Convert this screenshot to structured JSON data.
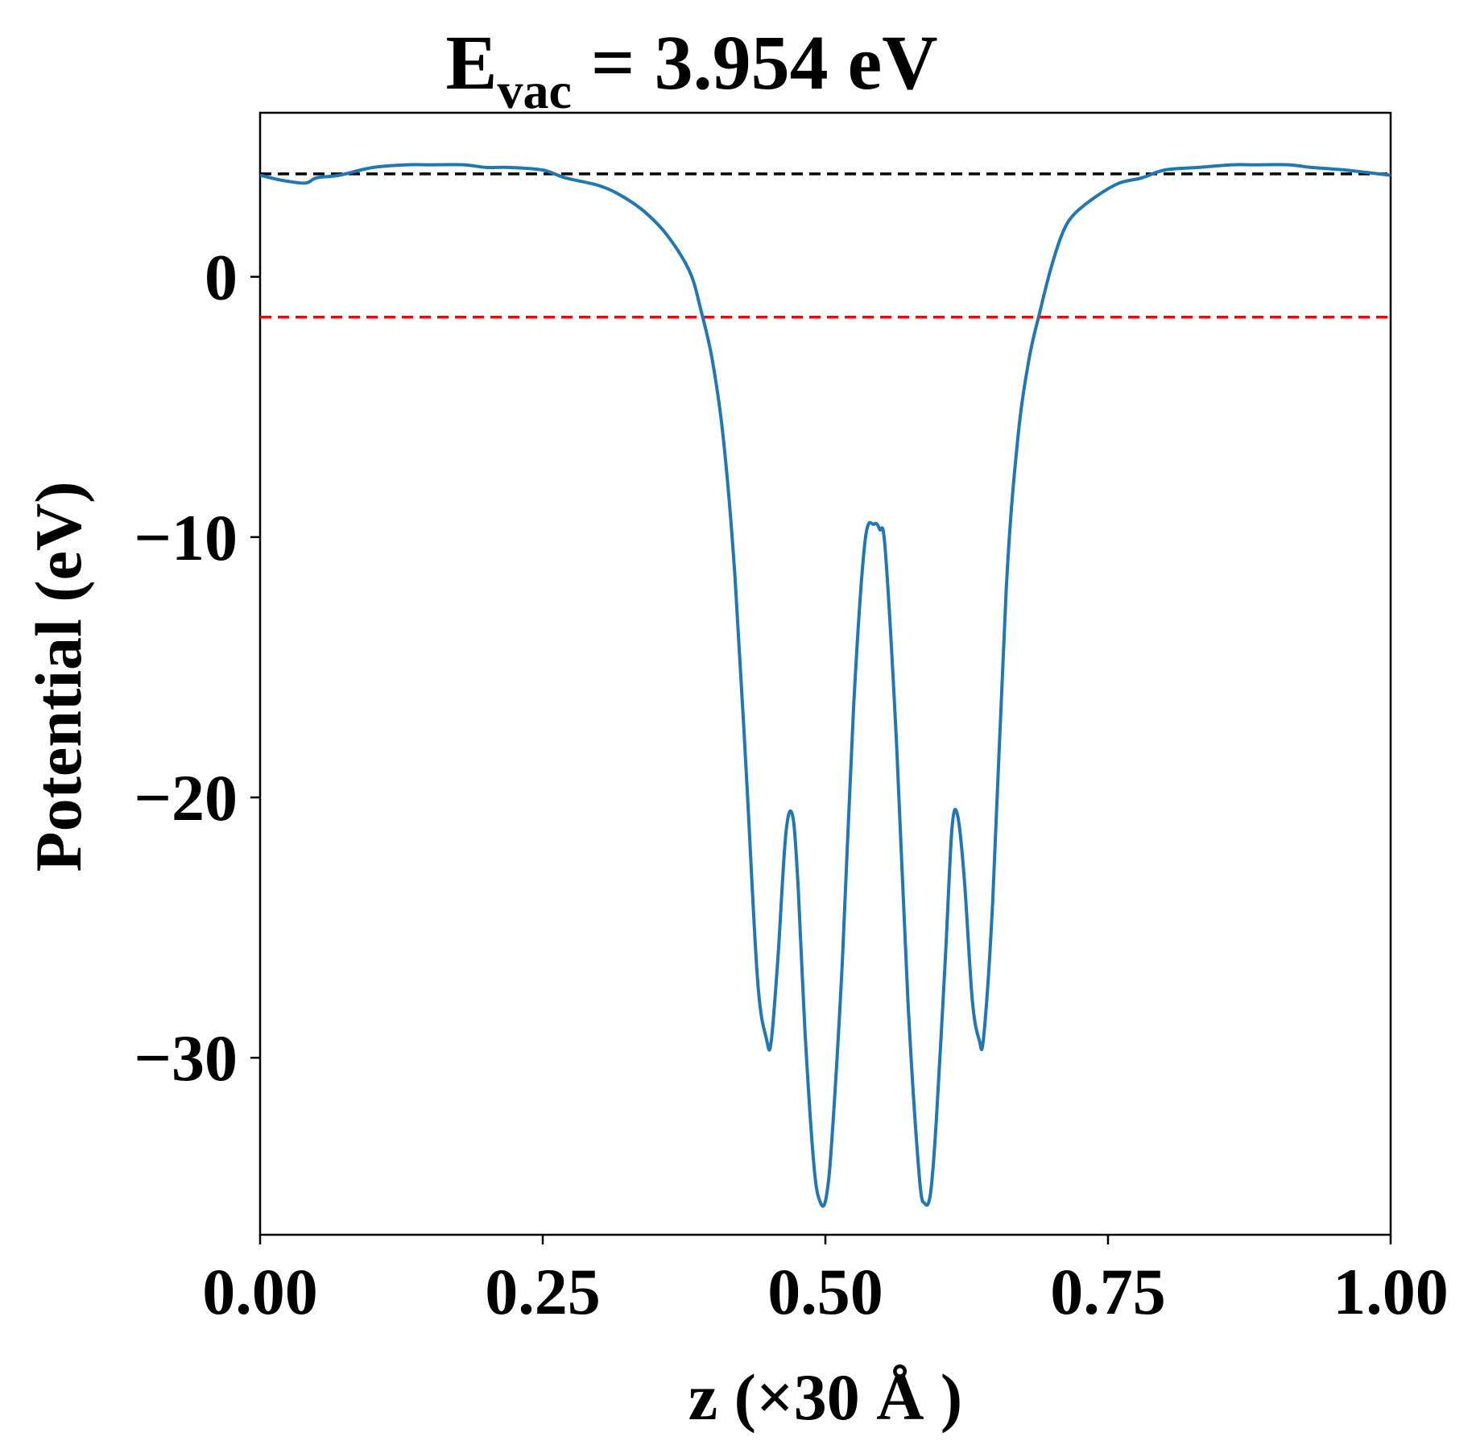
{
  "chart_data": {
    "type": "line",
    "title_main": "E",
    "title_sub": "vac",
    "title_rest": " = 3.954 eV",
    "xlabel": "z (×30 Å )",
    "ylabel": "Potential (eV)",
    "xlim": [
      0.0,
      1.0
    ],
    "ylim": [
      -36.8,
      6.3
    ],
    "xticks": [
      0.0,
      0.25,
      0.5,
      0.75,
      1.0
    ],
    "xtick_labels": [
      "0.00",
      "0.25",
      "0.50",
      "0.75",
      "1.00"
    ],
    "yticks": [
      0,
      -10,
      -20,
      -30
    ],
    "ytick_labels": [
      "0",
      "−10",
      "−20",
      "−30"
    ],
    "grid": false,
    "colors": {
      "potential": "#1f77b4",
      "vacuum": "#000000",
      "fermi": "#ff0000"
    },
    "reference_lines": [
      {
        "value": 3.954,
        "style": "dashed",
        "color": "#000000"
      },
      {
        "value": -1.55,
        "style": "dashed",
        "color": "#ff0000"
      }
    ],
    "series": [
      {
        "x": [
          0.0,
          0.02,
          0.04,
          0.05,
          0.07,
          0.1,
          0.13,
          0.15,
          0.18,
          0.2,
          0.22,
          0.25,
          0.27,
          0.3,
          0.32,
          0.34,
          0.36,
          0.38,
          0.39,
          0.4,
          0.41,
          0.42,
          0.43,
          0.44,
          0.448,
          0.452,
          0.458,
          0.465,
          0.471,
          0.476,
          0.482,
          0.49,
          0.496,
          0.501,
          0.506,
          0.515,
          0.525,
          0.535,
          0.543,
          0.548,
          0.553,
          0.563,
          0.573,
          0.583,
          0.588,
          0.593,
          0.598,
          0.606,
          0.612,
          0.617,
          0.623,
          0.63,
          0.636,
          0.64,
          0.648,
          0.66,
          0.67,
          0.68,
          0.69,
          0.7,
          0.71,
          0.72,
          0.74,
          0.76,
          0.78,
          0.8,
          0.83,
          0.86,
          0.88,
          0.91,
          0.93,
          0.96,
          0.98,
          1.0
        ],
        "y": [
          3.9,
          3.7,
          3.6,
          3.8,
          3.9,
          4.2,
          4.3,
          4.3,
          4.3,
          4.2,
          4.2,
          4.1,
          3.8,
          3.5,
          3.1,
          2.5,
          1.6,
          0.2,
          -1.3,
          -3.2,
          -6.3,
          -11.5,
          -19.0,
          -27.0,
          -29.3,
          -29.4,
          -26.2,
          -21.4,
          -20.7,
          -23.5,
          -29.0,
          -34.2,
          -35.6,
          -35.3,
          -33.0,
          -26.3,
          -16.5,
          -10.2,
          -9.5,
          -9.7,
          -10.5,
          -18.0,
          -27.8,
          -34.5,
          -35.6,
          -35.2,
          -32.5,
          -26.3,
          -21.2,
          -20.7,
          -23.2,
          -27.8,
          -29.3,
          -29.2,
          -24.0,
          -12.0,
          -6.3,
          -3.2,
          -1.3,
          0.4,
          1.7,
          2.4,
          3.1,
          3.6,
          3.8,
          4.1,
          4.2,
          4.3,
          4.3,
          4.3,
          4.2,
          4.1,
          4.0,
          3.9
        ]
      }
    ]
  }
}
